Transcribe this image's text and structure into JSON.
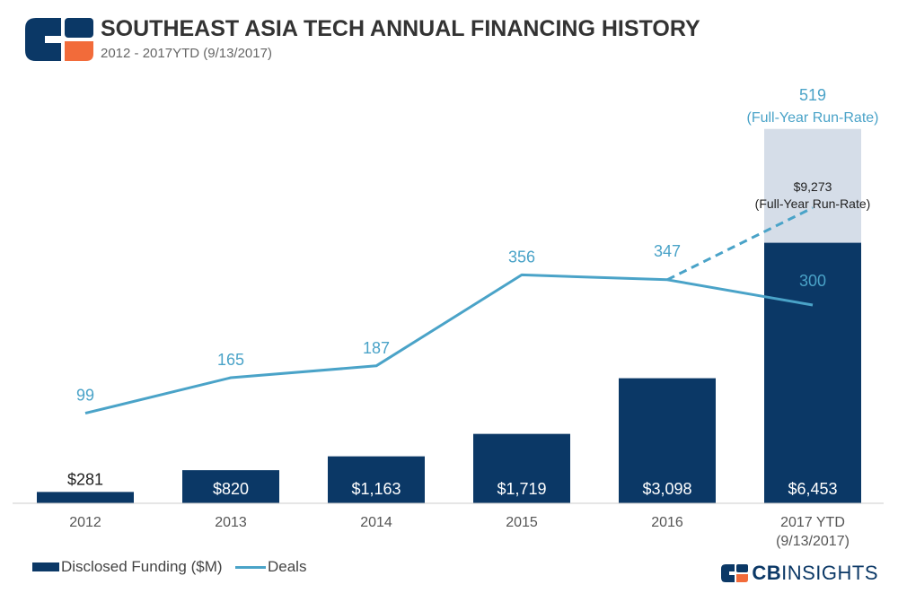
{
  "header": {
    "title": "SOUTHEAST ASIA TECH ANNUAL FINANCING HISTORY",
    "subtitle": "2012 - 2017YTD  (9/13/2017)"
  },
  "colors": {
    "bar": "#0b3866",
    "bar_runrate": "#d5dde8",
    "line": "#4aa3c8",
    "axis_text": "#555555",
    "logo_orange": "#f26b3a"
  },
  "chart_data": {
    "type": "bar",
    "categories": [
      "2012",
      "2013",
      "2014",
      "2015",
      "2016",
      "2017 YTD"
    ],
    "category_sublabels": [
      "",
      "",
      "",
      "",
      "",
      "(9/13/2017)"
    ],
    "series": [
      {
        "name": "Disclosed Funding ($M)",
        "type": "bar",
        "axis": "left",
        "values": [
          281,
          820,
          1163,
          1719,
          3098,
          6453
        ],
        "labels": [
          "$281",
          "$820",
          "$1,163",
          "$1,719",
          "$3,098",
          "$6,453"
        ]
      },
      {
        "name": "Deals",
        "type": "line",
        "axis": "right",
        "values": [
          99,
          165,
          187,
          356,
          347,
          300
        ],
        "labels": [
          "99",
          "165",
          "187",
          "356",
          "347",
          "300"
        ]
      }
    ],
    "run_rate": {
      "funding_value": 9273,
      "funding_label": "$9,273",
      "funding_note": "(Full-Year Run-Rate)",
      "deals_value": 519,
      "deals_label": "519",
      "deals_note": "(Full-Year Run-Rate)"
    },
    "funding_axis_range": [
      0,
      10000
    ],
    "deals_axis_range": [
      0,
      600
    ],
    "legend": [
      "Disclosed Funding ($M)",
      "Deals"
    ],
    "legend_position": "bottom-left",
    "grid": false
  },
  "legend": {
    "funding": "Disclosed Funding ($M)",
    "deals": "Deals"
  },
  "brand": {
    "strong": "CB",
    "light": "INSIGHTS"
  }
}
